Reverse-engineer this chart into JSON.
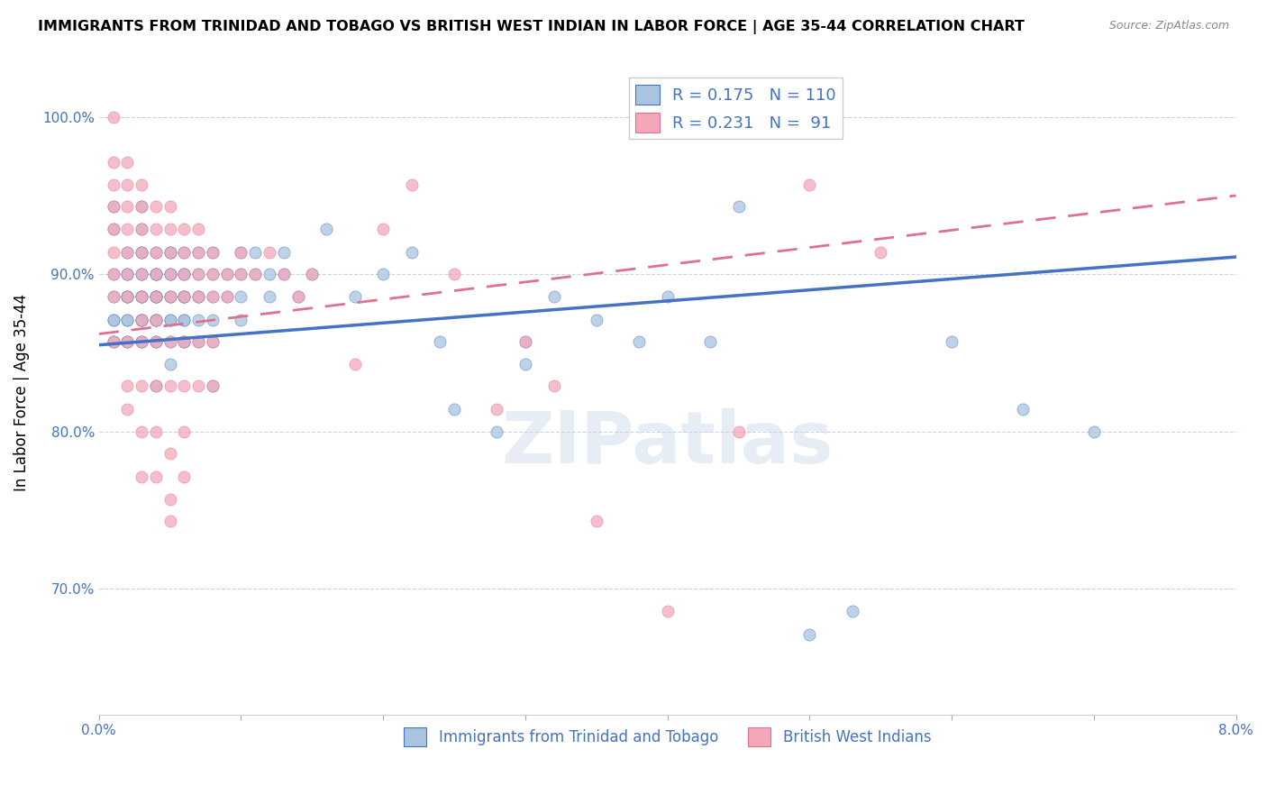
{
  "title": "IMMIGRANTS FROM TRINIDAD AND TOBAGO VS BRITISH WEST INDIAN IN LABOR FORCE | AGE 35-44 CORRELATION CHART",
  "source": "Source: ZipAtlas.com",
  "ylabel": "In Labor Force | Age 35-44",
  "xlim": [
    0.0,
    0.08
  ],
  "ylim": [
    0.62,
    1.03
  ],
  "yticks": [
    0.7,
    0.8,
    0.9,
    1.0
  ],
  "xticks": [
    0.0,
    0.01,
    0.02,
    0.03,
    0.04,
    0.05,
    0.06,
    0.07,
    0.08
  ],
  "xtick_labels": [
    "0.0%",
    "",
    "",
    "",
    "",
    "",
    "",
    "",
    "8.0%"
  ],
  "blue_color": "#a8c4e0",
  "pink_color": "#f4a7b9",
  "trendline_blue": "#4472c4",
  "trendline_pink": "#e07090",
  "R_blue": 0.175,
  "N_blue": 110,
  "R_pink": 0.231,
  "N_pink": 91,
  "legend_label_blue": "Immigrants from Trinidad and Tobago",
  "legend_label_pink": "British West Indians",
  "watermark": "ZIPatlas",
  "axis_label_color": "#4472c4",
  "blue_intercept": 0.855,
  "blue_slope": 0.7,
  "pink_intercept": 0.862,
  "pink_slope": 1.1,
  "blue_scatter": [
    [
      0.001,
      0.857
    ],
    [
      0.001,
      0.9
    ],
    [
      0.001,
      0.886
    ],
    [
      0.001,
      0.871
    ],
    [
      0.001,
      0.929
    ],
    [
      0.001,
      0.943
    ],
    [
      0.001,
      0.857
    ],
    [
      0.001,
      0.871
    ],
    [
      0.002,
      0.871
    ],
    [
      0.002,
      0.9
    ],
    [
      0.002,
      0.886
    ],
    [
      0.002,
      0.857
    ],
    [
      0.002,
      0.914
    ],
    [
      0.002,
      0.886
    ],
    [
      0.002,
      0.871
    ],
    [
      0.002,
      0.886
    ],
    [
      0.002,
      0.9
    ],
    [
      0.002,
      0.857
    ],
    [
      0.003,
      0.914
    ],
    [
      0.003,
      0.9
    ],
    [
      0.003,
      0.929
    ],
    [
      0.003,
      0.943
    ],
    [
      0.003,
      0.886
    ],
    [
      0.003,
      0.871
    ],
    [
      0.003,
      0.857
    ],
    [
      0.003,
      0.886
    ],
    [
      0.003,
      0.9
    ],
    [
      0.003,
      0.914
    ],
    [
      0.003,
      0.871
    ],
    [
      0.003,
      0.857
    ],
    [
      0.003,
      0.886
    ],
    [
      0.003,
      0.871
    ],
    [
      0.004,
      0.9
    ],
    [
      0.004,
      0.886
    ],
    [
      0.004,
      0.871
    ],
    [
      0.004,
      0.914
    ],
    [
      0.004,
      0.857
    ],
    [
      0.004,
      0.886
    ],
    [
      0.004,
      0.9
    ],
    [
      0.004,
      0.871
    ],
    [
      0.004,
      0.886
    ],
    [
      0.004,
      0.857
    ],
    [
      0.004,
      0.871
    ],
    [
      0.004,
      0.886
    ],
    [
      0.004,
      0.829
    ],
    [
      0.004,
      0.9
    ],
    [
      0.005,
      0.914
    ],
    [
      0.005,
      0.9
    ],
    [
      0.005,
      0.886
    ],
    [
      0.005,
      0.871
    ],
    [
      0.005,
      0.857
    ],
    [
      0.005,
      0.9
    ],
    [
      0.005,
      0.886
    ],
    [
      0.005,
      0.914
    ],
    [
      0.005,
      0.843
    ],
    [
      0.005,
      0.871
    ],
    [
      0.006,
      0.9
    ],
    [
      0.006,
      0.886
    ],
    [
      0.006,
      0.871
    ],
    [
      0.006,
      0.914
    ],
    [
      0.006,
      0.857
    ],
    [
      0.006,
      0.886
    ],
    [
      0.006,
      0.9
    ],
    [
      0.006,
      0.871
    ],
    [
      0.006,
      0.857
    ],
    [
      0.006,
      0.886
    ],
    [
      0.007,
      0.9
    ],
    [
      0.007,
      0.886
    ],
    [
      0.007,
      0.871
    ],
    [
      0.007,
      0.857
    ],
    [
      0.007,
      0.914
    ],
    [
      0.007,
      0.886
    ],
    [
      0.008,
      0.9
    ],
    [
      0.008,
      0.886
    ],
    [
      0.008,
      0.871
    ],
    [
      0.008,
      0.914
    ],
    [
      0.008,
      0.857
    ],
    [
      0.008,
      0.829
    ],
    [
      0.009,
      0.9
    ],
    [
      0.009,
      0.886
    ],
    [
      0.01,
      0.914
    ],
    [
      0.01,
      0.9
    ],
    [
      0.01,
      0.886
    ],
    [
      0.01,
      0.871
    ],
    [
      0.011,
      0.9
    ],
    [
      0.011,
      0.914
    ],
    [
      0.012,
      0.9
    ],
    [
      0.012,
      0.886
    ],
    [
      0.013,
      0.914
    ],
    [
      0.013,
      0.9
    ],
    [
      0.014,
      0.886
    ],
    [
      0.015,
      0.9
    ],
    [
      0.016,
      0.929
    ],
    [
      0.018,
      0.886
    ],
    [
      0.02,
      0.9
    ],
    [
      0.022,
      0.914
    ],
    [
      0.024,
      0.857
    ],
    [
      0.025,
      0.814
    ],
    [
      0.028,
      0.8
    ],
    [
      0.03,
      0.843
    ],
    [
      0.03,
      0.857
    ],
    [
      0.032,
      0.886
    ],
    [
      0.035,
      0.871
    ],
    [
      0.038,
      0.857
    ],
    [
      0.04,
      0.886
    ],
    [
      0.043,
      0.857
    ],
    [
      0.045,
      0.943
    ],
    [
      0.05,
      0.671
    ],
    [
      0.053,
      0.686
    ],
    [
      0.06,
      0.857
    ],
    [
      0.065,
      0.814
    ],
    [
      0.07,
      0.8
    ]
  ],
  "pink_scatter": [
    [
      0.001,
      1.0
    ],
    [
      0.001,
      0.957
    ],
    [
      0.001,
      0.971
    ],
    [
      0.001,
      0.943
    ],
    [
      0.001,
      0.929
    ],
    [
      0.001,
      0.914
    ],
    [
      0.001,
      0.9
    ],
    [
      0.001,
      0.886
    ],
    [
      0.001,
      0.857
    ],
    [
      0.002,
      0.971
    ],
    [
      0.002,
      0.957
    ],
    [
      0.002,
      0.943
    ],
    [
      0.002,
      0.929
    ],
    [
      0.002,
      0.914
    ],
    [
      0.002,
      0.9
    ],
    [
      0.002,
      0.886
    ],
    [
      0.002,
      0.857
    ],
    [
      0.002,
      0.829
    ],
    [
      0.002,
      0.814
    ],
    [
      0.003,
      0.957
    ],
    [
      0.003,
      0.943
    ],
    [
      0.003,
      0.929
    ],
    [
      0.003,
      0.914
    ],
    [
      0.003,
      0.9
    ],
    [
      0.003,
      0.886
    ],
    [
      0.003,
      0.871
    ],
    [
      0.003,
      0.857
    ],
    [
      0.003,
      0.829
    ],
    [
      0.003,
      0.8
    ],
    [
      0.003,
      0.771
    ],
    [
      0.004,
      0.943
    ],
    [
      0.004,
      0.929
    ],
    [
      0.004,
      0.914
    ],
    [
      0.004,
      0.9
    ],
    [
      0.004,
      0.886
    ],
    [
      0.004,
      0.871
    ],
    [
      0.004,
      0.857
    ],
    [
      0.004,
      0.829
    ],
    [
      0.004,
      0.8
    ],
    [
      0.004,
      0.771
    ],
    [
      0.005,
      0.943
    ],
    [
      0.005,
      0.929
    ],
    [
      0.005,
      0.914
    ],
    [
      0.005,
      0.9
    ],
    [
      0.005,
      0.886
    ],
    [
      0.005,
      0.857
    ],
    [
      0.005,
      0.829
    ],
    [
      0.005,
      0.786
    ],
    [
      0.005,
      0.757
    ],
    [
      0.005,
      0.743
    ],
    [
      0.006,
      0.929
    ],
    [
      0.006,
      0.914
    ],
    [
      0.006,
      0.9
    ],
    [
      0.006,
      0.886
    ],
    [
      0.006,
      0.857
    ],
    [
      0.006,
      0.829
    ],
    [
      0.006,
      0.8
    ],
    [
      0.006,
      0.771
    ],
    [
      0.007,
      0.929
    ],
    [
      0.007,
      0.914
    ],
    [
      0.007,
      0.9
    ],
    [
      0.007,
      0.886
    ],
    [
      0.007,
      0.857
    ],
    [
      0.007,
      0.829
    ],
    [
      0.008,
      0.914
    ],
    [
      0.008,
      0.9
    ],
    [
      0.008,
      0.886
    ],
    [
      0.008,
      0.857
    ],
    [
      0.008,
      0.829
    ],
    [
      0.009,
      0.9
    ],
    [
      0.009,
      0.886
    ],
    [
      0.01,
      0.914
    ],
    [
      0.01,
      0.9
    ],
    [
      0.011,
      0.9
    ],
    [
      0.012,
      0.914
    ],
    [
      0.013,
      0.9
    ],
    [
      0.014,
      0.886
    ],
    [
      0.015,
      0.9
    ],
    [
      0.018,
      0.843
    ],
    [
      0.02,
      0.929
    ],
    [
      0.022,
      0.957
    ],
    [
      0.025,
      0.9
    ],
    [
      0.028,
      0.814
    ],
    [
      0.03,
      0.857
    ],
    [
      0.032,
      0.829
    ],
    [
      0.035,
      0.743
    ],
    [
      0.04,
      0.686
    ],
    [
      0.045,
      0.8
    ],
    [
      0.05,
      0.957
    ],
    [
      0.055,
      0.914
    ]
  ]
}
